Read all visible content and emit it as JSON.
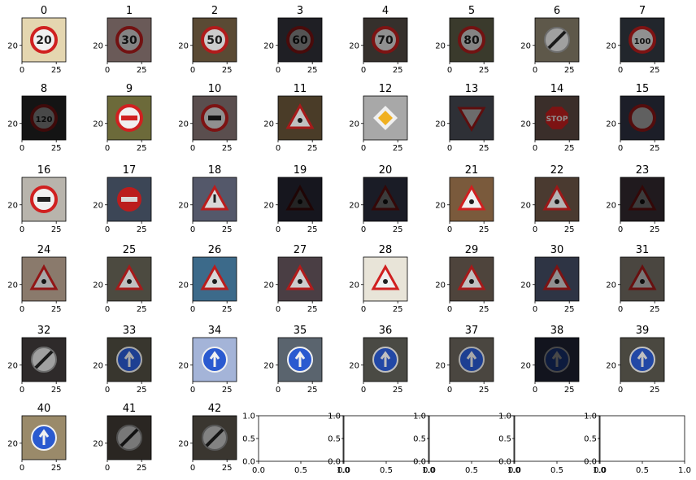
{
  "chart_data": {
    "type": "image-grid",
    "rows": 6,
    "cols": 8,
    "image_axis": {
      "xticks": [
        0,
        25
      ],
      "yticks": [
        20
      ],
      "xlim": [
        0,
        32
      ],
      "ylim": [
        32,
        0
      ]
    },
    "images": [
      {
        "label": "0",
        "bg": "#e4d6b0",
        "sign": "circle-red",
        "glyph": "20",
        "dim": 1.0
      },
      {
        "label": "1",
        "bg": "#6a5a58",
        "sign": "circle-red",
        "glyph": "30",
        "dim": 0.55
      },
      {
        "label": "2",
        "bg": "#5a4a34",
        "sign": "circle-red",
        "glyph": "50",
        "dim": 0.85
      },
      {
        "label": "3",
        "bg": "#1f1f24",
        "sign": "circle-red",
        "glyph": "60",
        "dim": 0.35
      },
      {
        "label": "4",
        "bg": "#35302c",
        "sign": "circle-red",
        "glyph": "70",
        "dim": 0.6
      },
      {
        "label": "5",
        "bg": "#3a3a2c",
        "sign": "circle-red",
        "glyph": "80",
        "dim": 0.55
      },
      {
        "label": "6",
        "bg": "#5e584a",
        "sign": "circle-gray-end",
        "glyph": "",
        "dim": 0.8
      },
      {
        "label": "7",
        "bg": "#22262c",
        "sign": "circle-red",
        "glyph": "100",
        "dim": 0.6
      },
      {
        "label": "8",
        "bg": "#141414",
        "sign": "circle-red",
        "glyph": "120",
        "dim": 0.3
      },
      {
        "label": "9",
        "bg": "#6c6a3a",
        "sign": "circle-red",
        "glyph": "bar",
        "dim": 1.0
      },
      {
        "label": "10",
        "bg": "#5a4e4e",
        "sign": "circle-red",
        "glyph": "car",
        "dim": 0.6
      },
      {
        "label": "11",
        "bg": "#4a3c28",
        "sign": "triangle",
        "glyph": "dot",
        "dim": 0.8
      },
      {
        "label": "12",
        "bg": "#a8a8a8",
        "sign": "diamond",
        "glyph": "",
        "dim": 1.0
      },
      {
        "label": "13",
        "bg": "#2e3036",
        "sign": "yield",
        "glyph": "",
        "dim": 0.45
      },
      {
        "label": "14",
        "bg": "#3a2e2a",
        "sign": "stop",
        "glyph": "STOP",
        "dim": 0.6
      },
      {
        "label": "15",
        "bg": "#1c1e28",
        "sign": "circle-red",
        "glyph": "",
        "dim": 0.4
      },
      {
        "label": "16",
        "bg": "#b8b4ac",
        "sign": "circle-red",
        "glyph": "car",
        "dim": 1.0
      },
      {
        "label": "17",
        "bg": "#3c4656",
        "sign": "noentry",
        "glyph": "",
        "dim": 0.9
      },
      {
        "label": "18",
        "bg": "#54586a",
        "sign": "triangle",
        "glyph": "!",
        "dim": 0.9
      },
      {
        "label": "19",
        "bg": "#16161e",
        "sign": "triangle",
        "glyph": "",
        "dim": 0.15
      },
      {
        "label": "20",
        "bg": "#1a1c26",
        "sign": "triangle",
        "glyph": "",
        "dim": 0.25
      },
      {
        "label": "21",
        "bg": "#7a5a3c",
        "sign": "triangle",
        "glyph": "",
        "dim": 1.0
      },
      {
        "label": "22",
        "bg": "#4a3a30",
        "sign": "triangle",
        "glyph": "",
        "dim": 0.75
      },
      {
        "label": "23",
        "bg": "#201a1e",
        "sign": "triangle",
        "glyph": "",
        "dim": 0.25
      },
      {
        "label": "24",
        "bg": "#8a7a6c",
        "sign": "triangle",
        "glyph": "",
        "dim": 0.7
      },
      {
        "label": "25",
        "bg": "#4c4a40",
        "sign": "triangle",
        "glyph": "",
        "dim": 0.8
      },
      {
        "label": "26",
        "bg": "#3c6a8a",
        "sign": "triangle",
        "glyph": "",
        "dim": 0.9
      },
      {
        "label": "27",
        "bg": "#4a3e44",
        "sign": "triangle",
        "glyph": "",
        "dim": 0.85
      },
      {
        "label": "28",
        "bg": "#e8e4d8",
        "sign": "triangle",
        "glyph": "",
        "dim": 1.0
      },
      {
        "label": "29",
        "bg": "#4e443c",
        "sign": "triangle",
        "glyph": "",
        "dim": 0.8
      },
      {
        "label": "30",
        "bg": "#2e3444",
        "sign": "triangle",
        "glyph": "",
        "dim": 0.6
      },
      {
        "label": "31",
        "bg": "#4a4640",
        "sign": "triangle",
        "glyph": "",
        "dim": 0.5
      },
      {
        "label": "32",
        "bg": "#2e2a2a",
        "sign": "circle-gray-end",
        "glyph": "",
        "dim": 0.8
      },
      {
        "label": "33",
        "bg": "#38362e",
        "sign": "circle-blue",
        "glyph": "",
        "dim": 0.7
      },
      {
        "label": "34",
        "bg": "#a4b4d8",
        "sign": "circle-blue",
        "glyph": "",
        "dim": 1.0
      },
      {
        "label": "35",
        "bg": "#5a646e",
        "sign": "circle-blue",
        "glyph": "",
        "dim": 1.0
      },
      {
        "label": "36",
        "bg": "#4a4a44",
        "sign": "circle-blue",
        "glyph": "",
        "dim": 0.8
      },
      {
        "label": "37",
        "bg": "#4a4640",
        "sign": "circle-blue",
        "glyph": "",
        "dim": 0.7
      },
      {
        "label": "38",
        "bg": "#12141e",
        "sign": "circle-blue",
        "glyph": "",
        "dim": 0.3
      },
      {
        "label": "39",
        "bg": "#4a4840",
        "sign": "circle-blue",
        "glyph": "",
        "dim": 0.8
      },
      {
        "label": "40",
        "bg": "#9a8a6a",
        "sign": "circle-blue",
        "glyph": "",
        "dim": 1.0
      },
      {
        "label": "41",
        "bg": "#2a2622",
        "sign": "circle-gray-end",
        "glyph": "",
        "dim": 0.6
      },
      {
        "label": "42",
        "bg": "#3a3630",
        "sign": "circle-gray-end",
        "glyph": "",
        "dim": 0.65
      }
    ],
    "empty_axis": {
      "ticks": [
        "0.0",
        "0.5",
        "1.0"
      ],
      "count": 5
    }
  }
}
